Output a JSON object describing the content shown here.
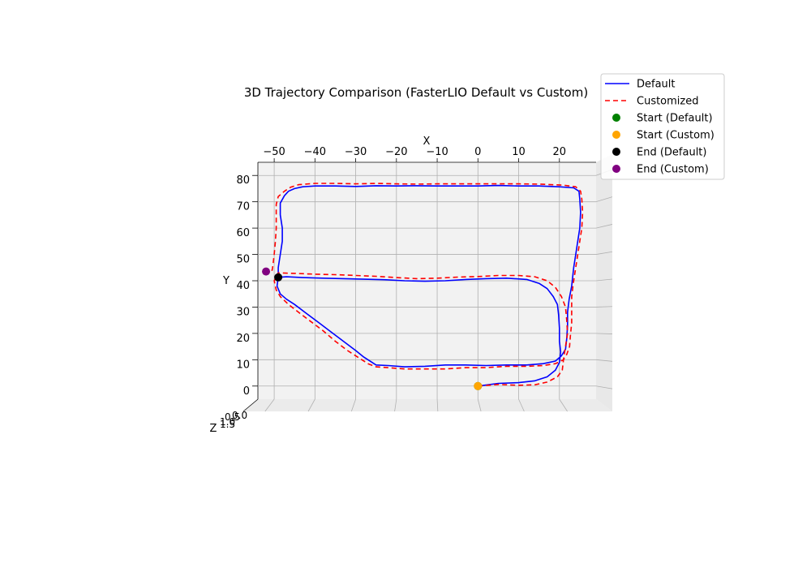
{
  "chart_data": {
    "type": "line",
    "title": "3D Trajectory Comparison (FasterLIO Default vs Custom)",
    "xlabel": "X",
    "ylabel": "Y",
    "zlabel": "Z",
    "xlim": [
      -54,
      29
    ],
    "ylim": [
      -5,
      85
    ],
    "xticks": [
      -50,
      -40,
      -30,
      -20,
      -10,
      0,
      10,
      20
    ],
    "yticks": [
      0,
      10,
      20,
      30,
      40,
      50,
      60,
      70,
      80
    ],
    "xtick_labels": [
      "−50",
      "−40",
      "−30",
      "−20",
      "−10",
      "0",
      "10",
      "20"
    ],
    "ytick_labels": [
      "0",
      "10",
      "20",
      "30",
      "40",
      "50",
      "60",
      "70",
      "80"
    ],
    "ztick_text": "0.5",
    "ztick_text2": "0.0",
    "ztick_text3": "1.0",
    "ztick_text4": "1.5",
    "grid": true,
    "legend_position": "top-right",
    "series": [
      {
        "name": "Default",
        "color": "#0000ff",
        "style": "solid",
        "points": [
          [
            0,
            0
          ],
          [
            5,
            1
          ],
          [
            10,
            1.3
          ],
          [
            14,
            2
          ],
          [
            17,
            3.5
          ],
          [
            19,
            6
          ],
          [
            20,
            9
          ],
          [
            20.3,
            13
          ],
          [
            20,
            17
          ],
          [
            20,
            22
          ],
          [
            19.8,
            27
          ],
          [
            19.5,
            31
          ],
          [
            18.5,
            34
          ],
          [
            17,
            37
          ],
          [
            15,
            39
          ],
          [
            12,
            40.5
          ],
          [
            7,
            41
          ],
          [
            2,
            40.8
          ],
          [
            -3,
            40.5
          ],
          [
            -8,
            40
          ],
          [
            -13,
            39.8
          ],
          [
            -18,
            40
          ],
          [
            -23,
            40.4
          ],
          [
            -28,
            40.6
          ],
          [
            -33,
            40.8
          ],
          [
            -38,
            41
          ],
          [
            -43,
            41.2
          ],
          [
            -47,
            41.5
          ],
          [
            -49,
            41.3
          ],
          [
            -49.3,
            38
          ],
          [
            -48.5,
            35
          ],
          [
            -47,
            33
          ],
          [
            -45,
            31
          ],
          [
            -42,
            27.5
          ],
          [
            -39,
            24
          ],
          [
            -36,
            20.5
          ],
          [
            -33,
            17
          ],
          [
            -30,
            13.5
          ],
          [
            -28,
            11
          ],
          [
            -26,
            9
          ],
          [
            -25,
            8
          ],
          [
            -22,
            7.8
          ],
          [
            -18,
            7.3
          ],
          [
            -13,
            7.5
          ],
          [
            -8,
            8
          ],
          [
            -3,
            8
          ],
          [
            2,
            7.8
          ],
          [
            7,
            8
          ],
          [
            12,
            8
          ],
          [
            16,
            8.5
          ],
          [
            19,
            9.5
          ],
          [
            20.5,
            11.5
          ],
          [
            21.5,
            14
          ],
          [
            21.8,
            18
          ],
          [
            22,
            23
          ],
          [
            22,
            28
          ],
          [
            22.4,
            33
          ],
          [
            23,
            38
          ],
          [
            23.5,
            45
          ],
          [
            24,
            50
          ],
          [
            24.5,
            55
          ],
          [
            25,
            60
          ],
          [
            25.2,
            66
          ],
          [
            25,
            71
          ],
          [
            24.8,
            74
          ],
          [
            23.5,
            75.3
          ],
          [
            20,
            75.7
          ],
          [
            15,
            76
          ],
          [
            10,
            76
          ],
          [
            5,
            76.2
          ],
          [
            0,
            76
          ],
          [
            -5,
            76
          ],
          [
            -10,
            76
          ],
          [
            -15,
            76.1
          ],
          [
            -20,
            76
          ],
          [
            -25,
            76.1
          ],
          [
            -30,
            75.8
          ],
          [
            -35,
            76
          ],
          [
            -40,
            76
          ],
          [
            -43,
            75.7
          ],
          [
            -45,
            75
          ],
          [
            -46.5,
            74
          ],
          [
            -47.5,
            72.3
          ],
          [
            -48.5,
            69.5
          ],
          [
            -48.5,
            65
          ],
          [
            -48,
            60
          ],
          [
            -48,
            55
          ],
          [
            -48.5,
            50
          ],
          [
            -49,
            45
          ],
          [
            -49,
            41.3
          ]
        ]
      },
      {
        "name": "Customized",
        "color": "#ff0000",
        "style": "dashed",
        "points": [
          [
            0,
            0
          ],
          [
            5,
            0.6
          ],
          [
            10,
            0.3
          ],
          [
            14,
            0.5
          ],
          [
            17,
            1.5
          ],
          [
            19.5,
            3.5
          ],
          [
            20.7,
            6
          ],
          [
            21,
            10
          ],
          [
            21.5,
            15
          ],
          [
            22,
            20
          ],
          [
            21.8,
            25
          ],
          [
            21.5,
            30
          ],
          [
            20.5,
            34
          ],
          [
            19,
            37.5
          ],
          [
            17,
            40
          ],
          [
            14,
            41.5
          ],
          [
            10,
            42
          ],
          [
            5,
            42
          ],
          [
            0,
            41.6
          ],
          [
            -5,
            41.4
          ],
          [
            -10,
            41
          ],
          [
            -15,
            40.8
          ],
          [
            -20,
            41.2
          ],
          [
            -25,
            41.7
          ],
          [
            -30,
            42
          ],
          [
            -35,
            42.3
          ],
          [
            -40,
            42.5
          ],
          [
            -45,
            42.8
          ],
          [
            -49,
            43
          ],
          [
            -50,
            40
          ],
          [
            -49.5,
            36.5
          ],
          [
            -48.5,
            34
          ],
          [
            -46.5,
            31
          ],
          [
            -44,
            28
          ],
          [
            -41,
            24.5
          ],
          [
            -38,
            21
          ],
          [
            -35,
            17
          ],
          [
            -32,
            13.5
          ],
          [
            -29,
            10.5
          ],
          [
            -27,
            8.5
          ],
          [
            -25,
            7.3
          ],
          [
            -22,
            7
          ],
          [
            -18,
            6.5
          ],
          [
            -13,
            6.5
          ],
          [
            -8,
            6.5
          ],
          [
            -3,
            7
          ],
          [
            2,
            7
          ],
          [
            7,
            7.5
          ],
          [
            12,
            7.5
          ],
          [
            16,
            7.8
          ],
          [
            19,
            8.5
          ],
          [
            21,
            10
          ],
          [
            21.8,
            12
          ],
          [
            22.5,
            15
          ],
          [
            22.7,
            19
          ],
          [
            23,
            24
          ],
          [
            23,
            29
          ],
          [
            23,
            34
          ],
          [
            23.4,
            39
          ],
          [
            24,
            45
          ],
          [
            24.5,
            50
          ],
          [
            25,
            55
          ],
          [
            25.5,
            60
          ],
          [
            25.7,
            66
          ],
          [
            25.5,
            71
          ],
          [
            25.2,
            74
          ],
          [
            24,
            75.7
          ],
          [
            21,
            76.3
          ],
          [
            15,
            76.7
          ],
          [
            10,
            76.8
          ],
          [
            5,
            76.8
          ],
          [
            0,
            76.8
          ],
          [
            -5,
            76.8
          ],
          [
            -10,
            76.8
          ],
          [
            -15,
            76.7
          ],
          [
            -20,
            76.8
          ],
          [
            -25,
            77
          ],
          [
            -30,
            76.8
          ],
          [
            -35,
            77
          ],
          [
            -40,
            77
          ],
          [
            -44,
            76.5
          ],
          [
            -46,
            75.5
          ],
          [
            -47.5,
            74
          ],
          [
            -49,
            72
          ],
          [
            -49.5,
            69
          ],
          [
            -49.5,
            65
          ],
          [
            -49.5,
            60
          ],
          [
            -49.7,
            55
          ],
          [
            -50,
            50
          ],
          [
            -50.3,
            46
          ],
          [
            -50.5,
            44
          ],
          [
            -52,
            43.5
          ]
        ]
      }
    ],
    "markers": [
      {
        "name": "Start (Default)",
        "color": "#008000",
        "x": 0,
        "y": 0
      },
      {
        "name": "Start (Custom)",
        "color": "#ffa500",
        "x": 0,
        "y": 0
      },
      {
        "name": "End (Default)",
        "color": "#000000",
        "x": -49,
        "y": 41.3
      },
      {
        "name": "End (Custom)",
        "color": "#800080",
        "x": -52,
        "y": 43.5
      }
    ],
    "legend": [
      {
        "label": "Default",
        "kind": "line",
        "color": "#0000ff",
        "dash": ""
      },
      {
        "label": "Customized",
        "kind": "line",
        "color": "#ff0000",
        "dash": "6,4"
      },
      {
        "label": "Start (Default)",
        "kind": "dot",
        "color": "#008000"
      },
      {
        "label": "Start (Custom)",
        "kind": "dot",
        "color": "#ffa500"
      },
      {
        "label": "End (Default)",
        "kind": "dot",
        "color": "#000000"
      },
      {
        "label": "End (Custom)",
        "kind": "dot",
        "color": "#800080"
      }
    ]
  }
}
